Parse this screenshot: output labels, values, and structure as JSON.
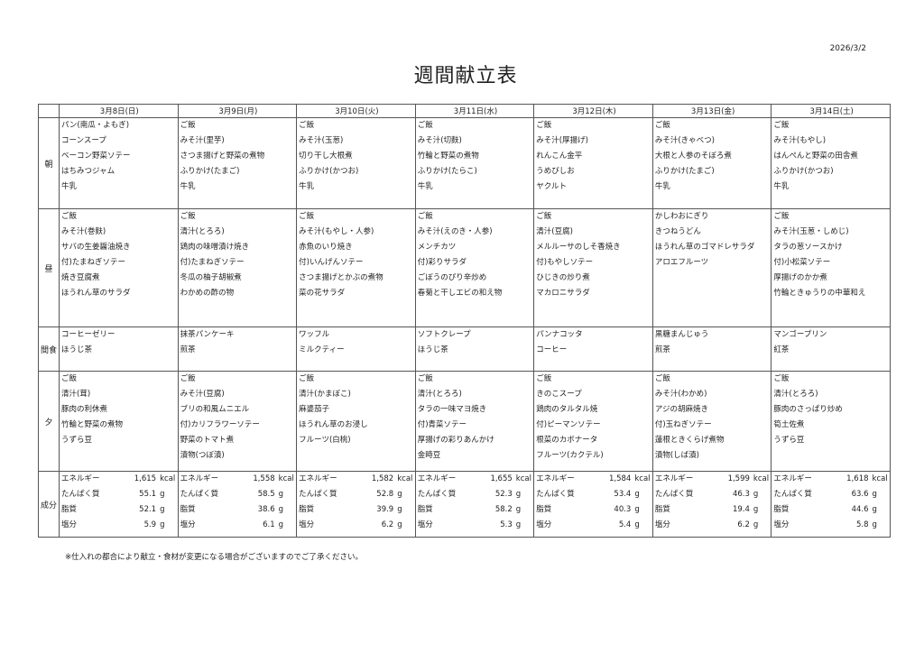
{
  "date": "2026/3/2",
  "title": "週間献立表",
  "days": [
    "3月8日(日)",
    "3月9日(月)",
    "3月10日(火)",
    "3月11日(水)",
    "3月12日(木)",
    "3月13日(金)",
    "3月14日(土)"
  ],
  "meal_labels": {
    "breakfast": "朝",
    "lunch": "昼",
    "snack": "間食",
    "dinner": "夕",
    "nutrition": "成分"
  },
  "breakfast": [
    [
      "パン(南瓜・よもぎ)",
      "コーンスープ",
      "ベーコン野菜ソテー",
      "はちみつジャム",
      "牛乳"
    ],
    [
      "ご飯",
      "みそ汁(里芋)",
      "さつま揚げと野菜の煮物",
      "ふりかけ(たまご)",
      "牛乳"
    ],
    [
      "ご飯",
      "みそ汁(玉葱)",
      "切り干し大根煮",
      "ふりかけ(かつお)",
      "牛乳"
    ],
    [
      "ご飯",
      "みそ汁(切麩)",
      "竹輪と野菜の煮物",
      "ふりかけ(たらこ)",
      "牛乳"
    ],
    [
      "ご飯",
      "みそ汁(厚揚げ)",
      "れんこん金平",
      "うめびしお",
      "ヤクルト"
    ],
    [
      "ご飯",
      "みそ汁(きゃべつ)",
      "大根と人参のそぼろ煮",
      "ふりかけ(たまご)",
      "牛乳"
    ],
    [
      "ご飯",
      "みそ汁(もやし)",
      "はんぺんと野菜の田舎煮",
      "ふりかけ(かつお)",
      "牛乳"
    ]
  ],
  "lunch": [
    [
      "ご飯",
      "みそ汁(巻麩)",
      "サバの生姜醤油焼き",
      "付)たまねぎソテー",
      "焼き豆腐煮",
      "ほうれん草のサラダ"
    ],
    [
      "ご飯",
      "清汁(とろろ)",
      "鶏肉の味噌漬け焼き",
      "付)たまねぎソテー",
      "冬瓜の柚子胡椒煮",
      "わかめの酢の物"
    ],
    [
      "ご飯",
      "みそ汁(もやし・人参)",
      "赤魚のいり焼き",
      "付)いんげんソテー",
      "さつま揚げとかぶの煮物",
      "菜の花サラダ"
    ],
    [
      "ご飯",
      "みそ汁(えのき・人参)",
      "メンチカツ",
      "付)彩りサラダ",
      "ごぼうのぴり辛炒め",
      "春菊と干しエビの和え物"
    ],
    [
      "ご飯",
      "清汁(豆腐)",
      "メルルーサのしそ香焼き",
      "付)もやしソテー",
      "ひじきの炒り煮",
      "マカロニサラダ"
    ],
    [
      "かしわおにぎり",
      "きつねうどん",
      "ほうれん草のゴマドレサラダ",
      "アロエフルーツ"
    ],
    [
      "ご飯",
      "みそ汁(玉葱・しめじ)",
      "タラの葱ソースかけ",
      "付)小松菜ソテー",
      "厚揚げのかか煮",
      "竹輪ときゅうりの中華和え"
    ]
  ],
  "snack": [
    [
      "コーヒーゼリー",
      "ほうじ茶"
    ],
    [
      "抹茶パンケーキ",
      "煎茶"
    ],
    [
      "ワッフル",
      "ミルクティー"
    ],
    [
      "ソフトクレープ",
      "ほうじ茶"
    ],
    [
      "パンナコッタ",
      "コーヒー"
    ],
    [
      "黒糖まんじゅう",
      "煎茶"
    ],
    [
      "マンゴープリン",
      "紅茶"
    ]
  ],
  "dinner": [
    [
      "ご飯",
      "清汁(茸)",
      "豚肉の利休煮",
      "竹輪と野菜の煮物",
      "うずら豆"
    ],
    [
      "ご飯",
      "みそ汁(豆腐)",
      "ブリの和風ムニエル",
      "付)カリフラワーソテー",
      "野菜のトマト煮",
      "漬物(つぼ漬)"
    ],
    [
      "ご飯",
      "清汁(かまぼこ)",
      "麻婆茄子",
      "ほうれん草のお浸し",
      "フルーツ(白桃)"
    ],
    [
      "ご飯",
      "清汁(とろろ)",
      "タラの一味マヨ焼き",
      "付)青菜ソテー",
      "厚揚げの彩りあんかけ",
      "金時豆"
    ],
    [
      "ご飯",
      "きのこスープ",
      "鶏肉のタルタル焼",
      "付)ピーマンソテー",
      "根菜のカボナータ",
      "フルーツ(カクテル)"
    ],
    [
      "ご飯",
      "みそ汁(わかめ)",
      "アジの胡麻焼き",
      "付)玉ねぎソテー",
      "蓮根ときくらげ煮物",
      "漬物(しば漬)"
    ],
    [
      "ご飯",
      "清汁(とろろ)",
      "豚肉のさっぱり炒め",
      "筍土佐煮",
      "うずら豆"
    ]
  ],
  "nutrition_labels": [
    "エネルギー",
    "たんぱく質",
    "脂質",
    "塩分"
  ],
  "nutrition_units": [
    "kcal",
    "g",
    "g",
    "g"
  ],
  "nutrition": [
    [
      "1,615",
      "55.1",
      "52.1",
      "5.9"
    ],
    [
      "1,558",
      "58.5",
      "38.6",
      "6.1"
    ],
    [
      "1,582",
      "52.8",
      "39.9",
      "6.2"
    ],
    [
      "1,655",
      "52.3",
      "58.2",
      "5.3"
    ],
    [
      "1,584",
      "53.4",
      "40.3",
      "5.4"
    ],
    [
      "1,599",
      "46.3",
      "19.4",
      "6.2"
    ],
    [
      "1,618",
      "63.6",
      "44.6",
      "5.8"
    ]
  ],
  "note": "※仕入れの都合により献立・食材が変更になる場合がございますのでご了承ください。"
}
